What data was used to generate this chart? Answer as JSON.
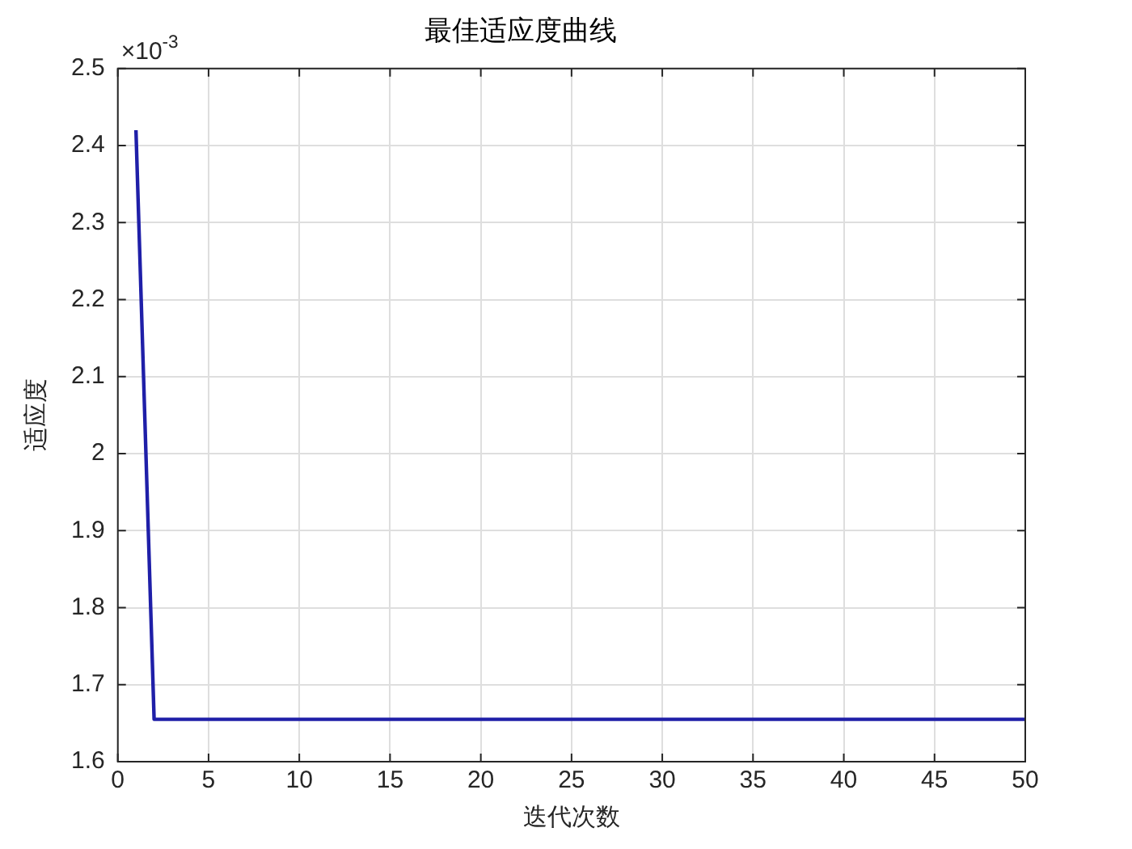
{
  "chart_data": {
    "type": "line",
    "title": "最佳适应度曲线",
    "xlabel": "迭代次数",
    "ylabel": "适应度",
    "x": [
      1,
      2,
      50
    ],
    "series": [
      {
        "color": "#1f1fa8",
        "values": [
          2.42,
          1.655,
          1.655
        ]
      }
    ],
    "xlim": [
      0,
      50
    ],
    "xticks": [
      0,
      5,
      10,
      15,
      20,
      25,
      30,
      35,
      40,
      45,
      50
    ],
    "ylim": [
      1.6,
      2.5
    ],
    "yticks": [
      1.6,
      1.7,
      1.8,
      1.9,
      2,
      2.1,
      2.2,
      2.3,
      2.4,
      2.5
    ],
    "annotations": [
      "×10$^{-3}$"
    ],
    "grid": true,
    "legend": false,
    "marker": "none",
    "line_style": "solid"
  }
}
